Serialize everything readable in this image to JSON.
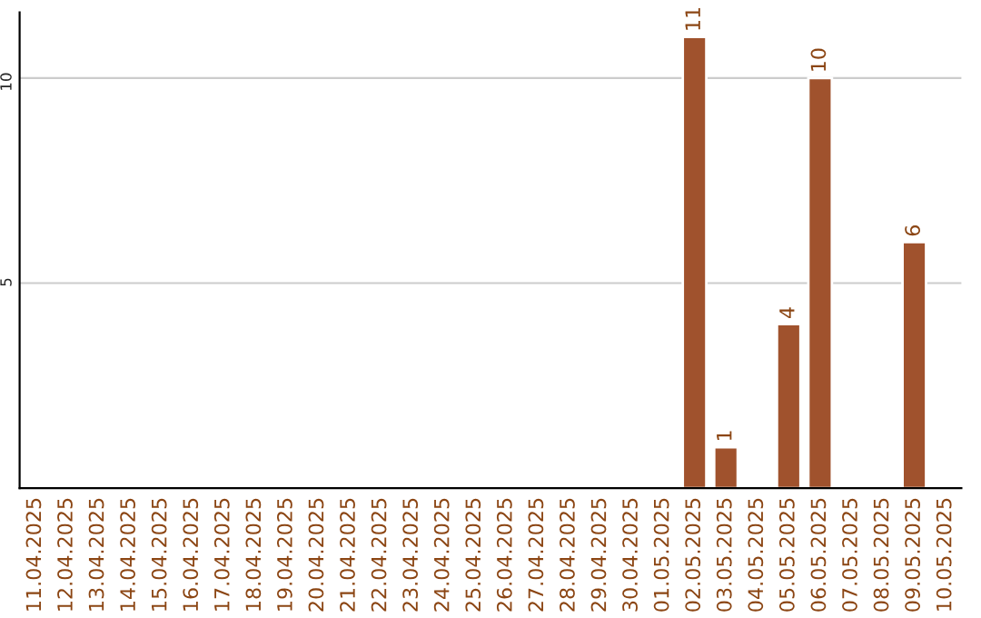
{
  "chart_data": {
    "type": "bar",
    "categories": [
      "11.04.2025",
      "12.04.2025",
      "13.04.2025",
      "14.04.2025",
      "15.04.2025",
      "16.04.2025",
      "17.04.2025",
      "18.04.2025",
      "19.04.2025",
      "20.04.2025",
      "21.04.2025",
      "22.04.2025",
      "23.04.2025",
      "24.04.2025",
      "25.04.2025",
      "26.04.2025",
      "27.04.2025",
      "28.04.2025",
      "29.04.2025",
      "30.04.2025",
      "01.05.2025",
      "02.05.2025",
      "03.05.2025",
      "04.05.2025",
      "05.05.2025",
      "06.05.2025",
      "07.05.2025",
      "08.05.2025",
      "09.05.2025",
      "10.05.2025"
    ],
    "values": [
      null,
      null,
      null,
      null,
      null,
      null,
      null,
      null,
      null,
      null,
      null,
      null,
      null,
      null,
      null,
      null,
      null,
      null,
      null,
      null,
      null,
      11,
      1,
      null,
      4,
      10,
      null,
      null,
      6,
      null
    ],
    "value_labels": [
      null,
      null,
      null,
      null,
      null,
      null,
      null,
      null,
      null,
      null,
      null,
      null,
      null,
      null,
      null,
      null,
      null,
      null,
      null,
      null,
      null,
      "11",
      "1",
      null,
      "4",
      "10",
      null,
      null,
      "6",
      null
    ],
    "color": "#a0522d",
    "ylim": [
      0,
      11.6
    ],
    "yticks": [
      5,
      10
    ],
    "grid": "y",
    "legend": false
  }
}
